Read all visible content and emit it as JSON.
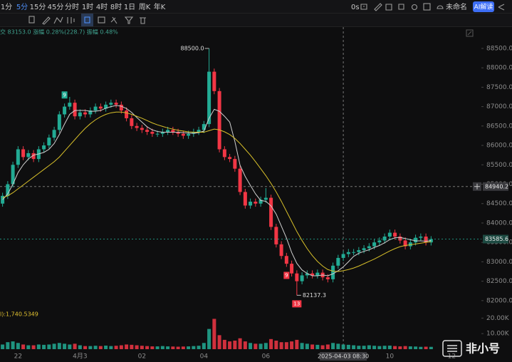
{
  "toolbar": {
    "intervals": [
      "1分",
      "5分",
      "15分",
      "45分",
      "分时",
      "1时",
      "4时",
      "8时",
      "1日",
      "周K",
      "年K"
    ],
    "selected_index": 1,
    "right": [
      "0s",
      "未命名",
      "AI解读"
    ]
  },
  "info_line": "交 83153.0 涨幅 0.28%(228.7) 振幅 0.48%",
  "volume_label": "l):1,740.5349",
  "watermark": "非小号",
  "chart_data": {
    "type": "candlestick",
    "up_color": "#22ab94",
    "down_color": "#f23645",
    "categories": [
      null,
      null,
      null,
      "22",
      null,
      null,
      null,
      null,
      null,
      null,
      null,
      null,
      null,
      null,
      null,
      "4月3",
      null,
      null,
      null,
      null,
      null,
      null,
      null,
      null,
      null,
      null,
      null,
      "02",
      null,
      null,
      null,
      null,
      null,
      null,
      null,
      null,
      null,
      null,
      null,
      "04",
      null,
      null,
      null,
      null,
      null,
      null,
      null,
      null,
      null,
      null,
      null,
      "06",
      null,
      null,
      null,
      null,
      null,
      null,
      null,
      null,
      null,
      null,
      null,
      null,
      null,
      null,
      "2025-04-03 08:30",
      null,
      null,
      null,
      null,
      null,
      null,
      null,
      null,
      "10",
      null,
      null,
      null,
      null,
      null,
      null,
      null,
      null,
      null,
      null,
      null,
      "12"
    ],
    "open": [
      84500,
      84700,
      85000,
      85500,
      85900,
      85700,
      85800,
      85650,
      85900,
      86000,
      86200,
      86400,
      86800,
      87000,
      87100,
      86750,
      86850,
      86800,
      86900,
      87000,
      86950,
      87050,
      87100,
      87050,
      86900,
      86700,
      86500,
      86450,
      86400,
      86350,
      86300,
      86300,
      86350,
      86400,
      86350,
      86300,
      86250,
      86300,
      86350,
      86400,
      86550,
      87900,
      87400,
      85900,
      85700,
      85650,
      85400,
      84800,
      84450,
      84550,
      84500,
      84600,
      84650,
      83900,
      83450,
      83150,
      82950,
      82700,
      82500,
      82650,
      82700,
      82650,
      82720,
      82600,
      82550,
      82900,
      83100,
      83200,
      83250,
      83250,
      83300,
      83350,
      83400,
      83500,
      83550,
      83650,
      83750,
      83650,
      83550,
      83400,
      83500,
      83620,
      83650,
      83500,
      null,
      null,
      null,
      null
    ],
    "high": [
      84780,
      85080,
      85580,
      85980,
      85980,
      85880,
      85880,
      85980,
      86080,
      86280,
      86480,
      86880,
      87080,
      87250,
      87180,
      86930,
      86930,
      86980,
      87080,
      87080,
      87130,
      87180,
      87180,
      87130,
      86980,
      86780,
      86580,
      86530,
      86480,
      86430,
      86380,
      86430,
      86480,
      86480,
      86430,
      86380,
      86380,
      86430,
      86480,
      86630,
      88500,
      87980,
      87480,
      85980,
      85780,
      85730,
      85480,
      84880,
      84630,
      84630,
      84680,
      84900,
      84730,
      83980,
      83530,
      83230,
      83030,
      82780,
      82730,
      82780,
      82780,
      82800,
      82800,
      82680,
      82980,
      83180,
      83280,
      83330,
      83330,
      83380,
      83430,
      83480,
      83580,
      83630,
      83730,
      83830,
      83830,
      83730,
      83630,
      83580,
      83700,
      83730,
      83730,
      83660,
      null,
      null,
      null,
      null
    ],
    "low": [
      84420,
      84620,
      84920,
      85420,
      85620,
      85620,
      85570,
      85570,
      85820,
      85920,
      86120,
      86320,
      86720,
      86920,
      86670,
      86670,
      86720,
      86720,
      86820,
      86870,
      86870,
      86970,
      86970,
      86820,
      86620,
      86420,
      86370,
      86320,
      86270,
      86220,
      86220,
      86220,
      86270,
      86270,
      86220,
      86170,
      86170,
      86220,
      86270,
      86320,
      86470,
      87320,
      85820,
      85620,
      85570,
      85320,
      84720,
      84370,
      84370,
      84420,
      84420,
      84520,
      83820,
      83370,
      83070,
      82870,
      82620,
      82137.3,
      82420,
      82570,
      82570,
      82570,
      82520,
      82470,
      82470,
      82820,
      83020,
      83120,
      83170,
      83170,
      83220,
      83270,
      83320,
      83420,
      83470,
      83570,
      83570,
      83470,
      83320,
      83320,
      83420,
      83540,
      83420,
      83420,
      null,
      null,
      null,
      null
    ],
    "close": [
      84700,
      85000,
      85500,
      85900,
      85700,
      85800,
      85650,
      85900,
      86000,
      86200,
      86400,
      86800,
      87000,
      87100,
      86750,
      86850,
      86800,
      86900,
      87000,
      86950,
      87050,
      87100,
      87050,
      86900,
      86700,
      86500,
      86450,
      86400,
      86350,
      86300,
      86300,
      86350,
      86400,
      86350,
      86300,
      86250,
      86300,
      86350,
      86400,
      86550,
      87900,
      87400,
      85900,
      85700,
      85650,
      85400,
      84800,
      84450,
      84550,
      84500,
      84600,
      84650,
      83900,
      83450,
      83150,
      82950,
      82700,
      82500,
      82650,
      82700,
      82650,
      82720,
      82600,
      82550,
      82900,
      83100,
      83200,
      83250,
      83250,
      83300,
      83350,
      83400,
      83500,
      83550,
      83650,
      83750,
      83650,
      83550,
      83400,
      83500,
      83620,
      83650,
      83500,
      83585.6,
      null,
      null,
      null,
      null
    ],
    "high_label": "88500.0",
    "low_label": "82137.3",
    "signal_above": [
      null,
      null,
      null,
      null,
      null,
      null,
      null,
      null,
      null,
      null,
      null,
      null,
      "9",
      null,
      null,
      null,
      null,
      null,
      null,
      null,
      null,
      null,
      null,
      null,
      null,
      null,
      null,
      null,
      null,
      null,
      null,
      null,
      null,
      null,
      null,
      null,
      null,
      null,
      null,
      null,
      null,
      null,
      null,
      null,
      null,
      null,
      null,
      null,
      null,
      null,
      null,
      null,
      null,
      null,
      null,
      null,
      null,
      null,
      null,
      null,
      null,
      null,
      null,
      null,
      null,
      null,
      null,
      null,
      null,
      null,
      null,
      null,
      null,
      null,
      null,
      null,
      null,
      null,
      null,
      null,
      null,
      null,
      null,
      null,
      null,
      null,
      null,
      null
    ],
    "signal_below": [
      null,
      null,
      null,
      null,
      null,
      null,
      null,
      null,
      null,
      null,
      null,
      null,
      null,
      null,
      null,
      null,
      null,
      null,
      null,
      null,
      null,
      null,
      null,
      null,
      null,
      null,
      null,
      null,
      null,
      null,
      null,
      null,
      null,
      null,
      null,
      null,
      null,
      null,
      null,
      null,
      null,
      null,
      null,
      null,
      null,
      null,
      null,
      null,
      null,
      null,
      null,
      null,
      null,
      null,
      null,
      "9",
      null,
      "13",
      null,
      null,
      null,
      null,
      null,
      null,
      null,
      null,
      null,
      null,
      null,
      null,
      null,
      null,
      null,
      null,
      null,
      null,
      null,
      null,
      null,
      null,
      null,
      null,
      null,
      null,
      null,
      null,
      null,
      null
    ],
    "ma_lines": [
      {
        "color": "#d0d0d0",
        "values": [
          84600,
          84750,
          85000,
          85300,
          85500,
          85650,
          85750,
          85780,
          85820,
          85900,
          86050,
          86280,
          86550,
          86800,
          86900,
          86900,
          86900,
          86880,
          86880,
          86900,
          86960,
          87000,
          87030,
          87010,
          86950,
          86850,
          86720,
          86600,
          86480,
          86400,
          86360,
          86340,
          86340,
          86340,
          86340,
          86330,
          86320,
          86310,
          86330,
          86370,
          86700,
          86930,
          86880,
          86750,
          86600,
          86100,
          85490,
          85200,
          84970,
          84750,
          84580,
          84560,
          84440,
          84230,
          83920,
          83610,
          83240,
          82960,
          82790,
          82700,
          82640,
          82640,
          82660,
          82640,
          82690,
          82770,
          82870,
          83000,
          83140,
          83220,
          83270,
          83310,
          83370,
          83420,
          83490,
          83570,
          83620,
          83630,
          83600,
          83570,
          83540,
          83540,
          83530,
          83550,
          null,
          null,
          null,
          null
        ]
      },
      {
        "color": "#d8c02a",
        "values": [
          84650,
          84700,
          84780,
          84880,
          84980,
          85080,
          85180,
          85280,
          85380,
          85480,
          85580,
          85700,
          85850,
          86000,
          86150,
          86300,
          86440,
          86560,
          86660,
          86740,
          86800,
          86840,
          86860,
          86860,
          86840,
          86800,
          86750,
          86700,
          86640,
          86580,
          86530,
          86490,
          86450,
          86420,
          86390,
          86370,
          86350,
          86340,
          86340,
          86340,
          86380,
          86420,
          86400,
          86350,
          86280,
          86180,
          86050,
          85900,
          85750,
          85580,
          85400,
          85220,
          85020,
          84800,
          84560,
          84300,
          84040,
          83780,
          83550,
          83340,
          83160,
          83010,
          82890,
          82800,
          82760,
          82750,
          82770,
          82800,
          82840,
          82890,
          82950,
          83010,
          83070,
          83140,
          83210,
          83280,
          83340,
          83390,
          83420,
          83440,
          83460,
          83480,
          83500,
          83520,
          null,
          null,
          null,
          null
        ]
      }
    ],
    "ylim": [
      81850,
      89050
    ],
    "yticks": [
      {
        "value": 82000,
        "label": "82000.0"
      },
      {
        "value": 82500,
        "label": "82500.0"
      },
      {
        "value": 83000,
        "label": "83000.0"
      },
      {
        "value": 83500,
        "label": "83500.0"
      },
      {
        "value": 84000,
        "label": "84000.0"
      },
      {
        "value": 84500,
        "label": "84500.0"
      },
      {
        "value": 85000,
        "label": "85000.0"
      },
      {
        "value": 85500,
        "label": "85500.0"
      },
      {
        "value": 86000,
        "label": "86000.0"
      },
      {
        "value": 86500,
        "label": "86500.0"
      },
      {
        "value": 87000,
        "label": "87000.0"
      },
      {
        "value": 87500,
        "label": "87500.0"
      },
      {
        "value": 88000,
        "label": "88000.0"
      },
      {
        "value": 88500,
        "label": "88500.0"
      }
    ],
    "last_price": {
      "value": 83585.6,
      "label": "83585.6"
    },
    "crosshair": {
      "value": 84940.2,
      "label": "84940.2"
    },
    "volume": {
      "values": [
        3000,
        4500,
        5000,
        4000,
        3000,
        2500,
        2500,
        3000,
        2800,
        3000,
        3500,
        4000,
        3500,
        3000,
        3500,
        2500,
        2000,
        2000,
        2200,
        2000,
        2300,
        2000,
        2200,
        2500,
        3000,
        2800,
        2500,
        2200,
        2000,
        1800,
        1800,
        2000,
        1800,
        1700,
        1600,
        1700,
        1800,
        2000,
        2200,
        4000,
        13000,
        19500,
        9000,
        6000,
        5000,
        5500,
        7000,
        5000,
        4000,
        3500,
        3500,
        4000,
        6500,
        5500,
        4500,
        4500,
        5000,
        6000,
        4000,
        3500,
        3000,
        2800,
        2500,
        3000,
        4000,
        3500,
        3000,
        2800,
        2500,
        2200,
        2200,
        2500,
        2200,
        2000,
        2200,
        2300,
        2000,
        1800,
        2000,
        1800,
        1700,
        1500,
        1600,
        1500,
        null,
        null,
        null,
        null
      ],
      "ylim": [
        0,
        22000
      ],
      "yticks": [
        {
          "value": 10000,
          "label": "10.00K"
        },
        {
          "value": 20000,
          "label": "20.00K"
        }
      ]
    }
  }
}
